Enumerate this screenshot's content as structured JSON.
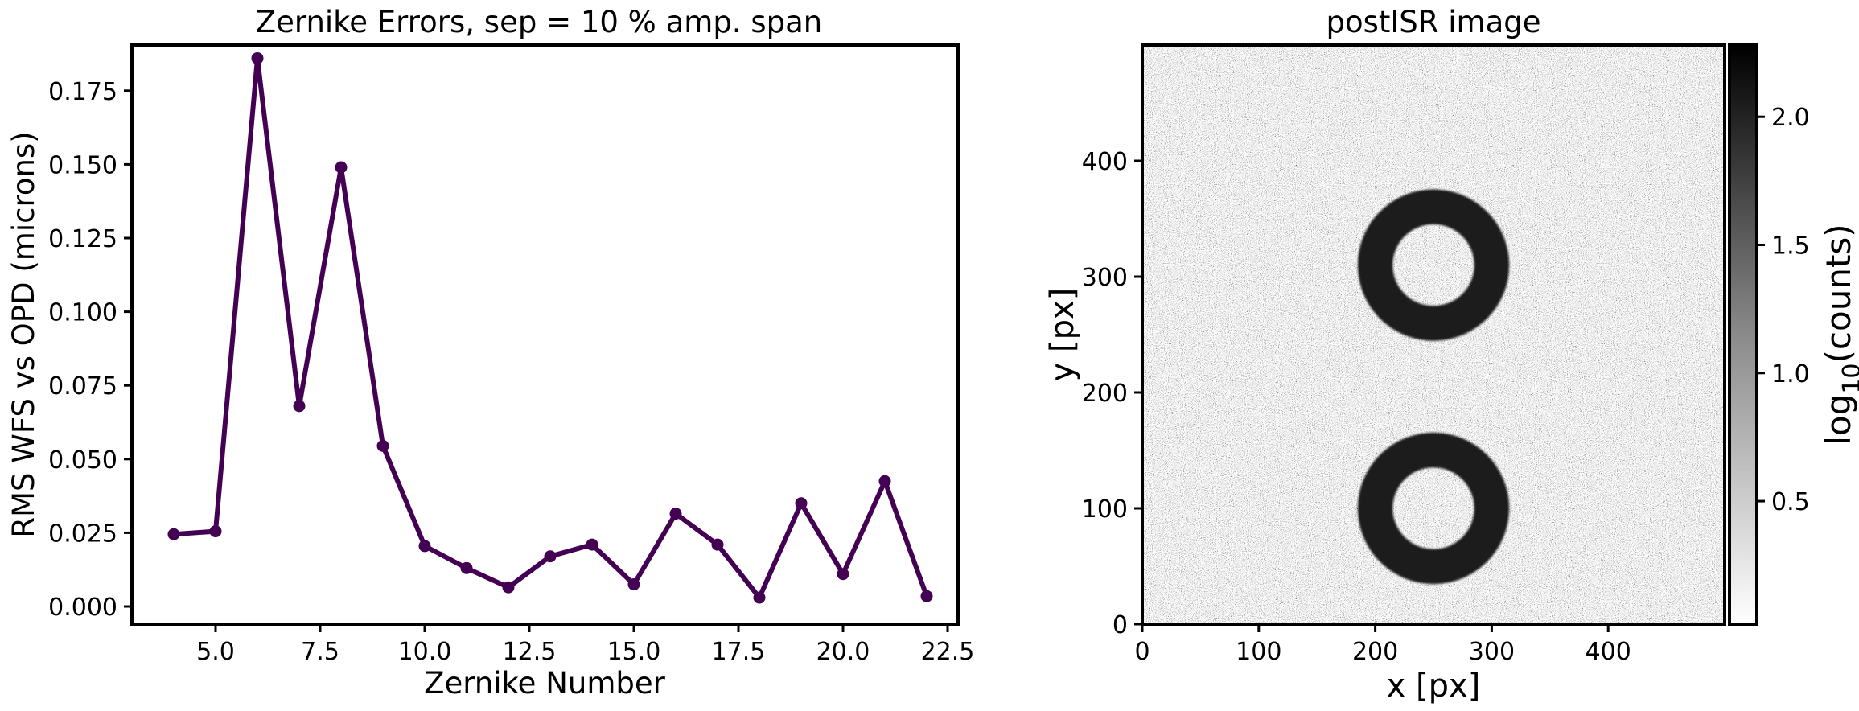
{
  "chart_data": [
    {
      "type": "line",
      "title": "Zernike Errors, sep = 10 % amp. span",
      "xlabel": "Zernike Number",
      "ylabel": "RMS WFS vs OPD (microns)",
      "xlim": [
        3.0,
        22.75
      ],
      "ylim": [
        -0.006,
        0.1905
      ],
      "xticks": [
        "5.0",
        "7.5",
        "10.0",
        "12.5",
        "15.0",
        "17.5",
        "20.0",
        "22.5"
      ],
      "yticks": [
        "0.000",
        "0.025",
        "0.050",
        "0.075",
        "0.100",
        "0.125",
        "0.150",
        "0.175"
      ],
      "grid": false,
      "series": [
        {
          "color": "#440154",
          "x": [
            4,
            5,
            6,
            7,
            8,
            9,
            10,
            11,
            12,
            13,
            14,
            15,
            16,
            17,
            18,
            19,
            20,
            21,
            22
          ],
          "y": [
            0.0245,
            0.0255,
            0.186,
            0.068,
            0.149,
            0.0545,
            0.0205,
            0.013,
            0.0065,
            0.017,
            0.021,
            0.0075,
            0.0315,
            0.021,
            0.003,
            0.035,
            0.011,
            0.0425,
            0.0035
          ]
        }
      ]
    },
    {
      "type": "heatmap",
      "title": "postISR image",
      "xlabel": "x [px]",
      "ylabel": "y [px]",
      "xlim": [
        0,
        500
      ],
      "ylim": [
        0,
        500
      ],
      "xticks": [
        "0",
        "100",
        "200",
        "300",
        "400"
      ],
      "yticks": [
        "0",
        "100",
        "200",
        "300",
        "400"
      ],
      "colormap": "Greys",
      "rings": [
        {
          "center": [
            250,
            310
          ],
          "inner_radius": 35,
          "outer_radius": 65
        },
        {
          "center": [
            250,
            100
          ],
          "inner_radius": 35,
          "outer_radius": 65
        }
      ],
      "colorbar": {
        "label_base": "log",
        "label_sub": "10",
        "label_rest": "(counts)",
        "range": [
          0.02,
          2.28
        ],
        "ticks": [
          "0.5",
          "1.0",
          "1.5",
          "2.0"
        ]
      }
    }
  ]
}
